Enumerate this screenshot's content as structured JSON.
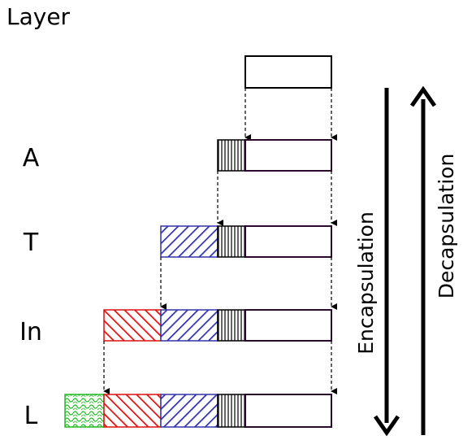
{
  "title": "Layer",
  "layers": [
    {
      "label": "A"
    },
    {
      "label": "T"
    },
    {
      "label": "In"
    },
    {
      "label": "L"
    }
  ],
  "arrows": {
    "down_label": "Encapsulation",
    "up_label": "Decapsulation"
  },
  "colors": {
    "transport_header": "#3333aa",
    "internet_header": "#dd1111",
    "link_header": "#22bb22",
    "application_header": "#000000",
    "data": "#2a0a2a"
  }
}
